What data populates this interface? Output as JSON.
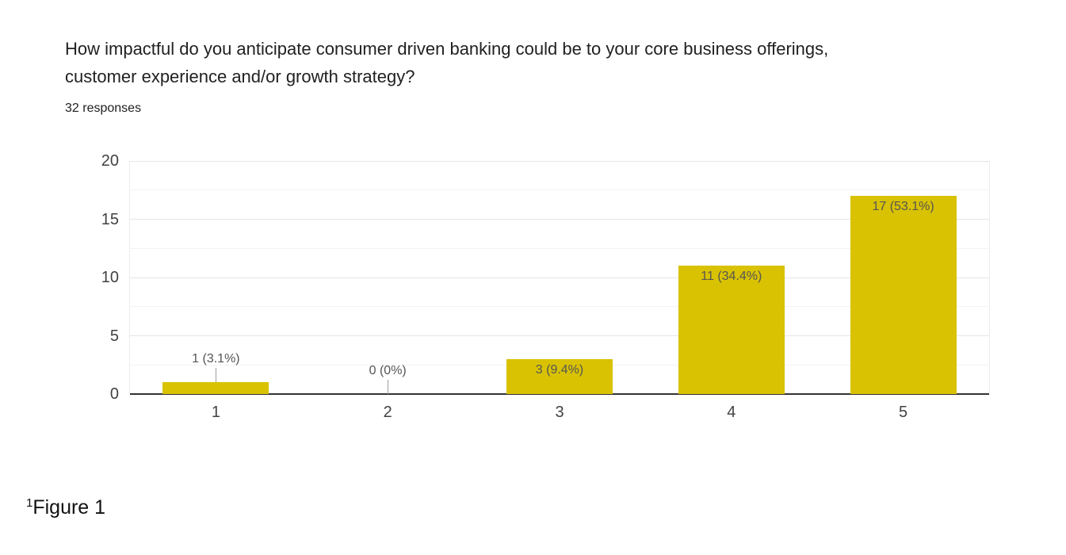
{
  "header": {
    "title_lines": [
      "How impactful do you anticipate consumer driven banking could be to your core business offerings,",
      "customer experience and/or growth strategy?"
    ]
  },
  "chart_data": {
    "type": "bar",
    "title": "How impactful do you anticipate consumer driven banking could be to your core business offerings, customer experience and/or growth strategy?",
    "subtitle": "32 responses",
    "categories": [
      "1",
      "2",
      "3",
      "4",
      "5"
    ],
    "values": [
      1,
      0,
      3,
      11,
      17
    ],
    "bar_labels": [
      "1 (3.1%)",
      "0 (0%)",
      "3 (9.4%)",
      "11 (34.4%)",
      "17 (53.1%)"
    ],
    "label_inside": [
      false,
      false,
      true,
      true,
      true
    ],
    "xlabel": "",
    "ylabel": "",
    "ylim": [
      0,
      20
    ],
    "yticks": [
      0,
      5,
      10,
      15,
      20
    ],
    "minor_gridlines": [
      2.5,
      7.5,
      12.5,
      17.5
    ],
    "grid": true,
    "legend": "none",
    "colors": {
      "bar": "#d9c201",
      "baseline": "#333333",
      "grid_major": "#e6e6e6",
      "grid_minor": "#f3f3f3",
      "annotation": "#555555",
      "axis_label": "#424242",
      "stem": "#9e9e9e"
    }
  },
  "footer": {
    "footnote_marker": "1",
    "caption": "Figure 1"
  }
}
